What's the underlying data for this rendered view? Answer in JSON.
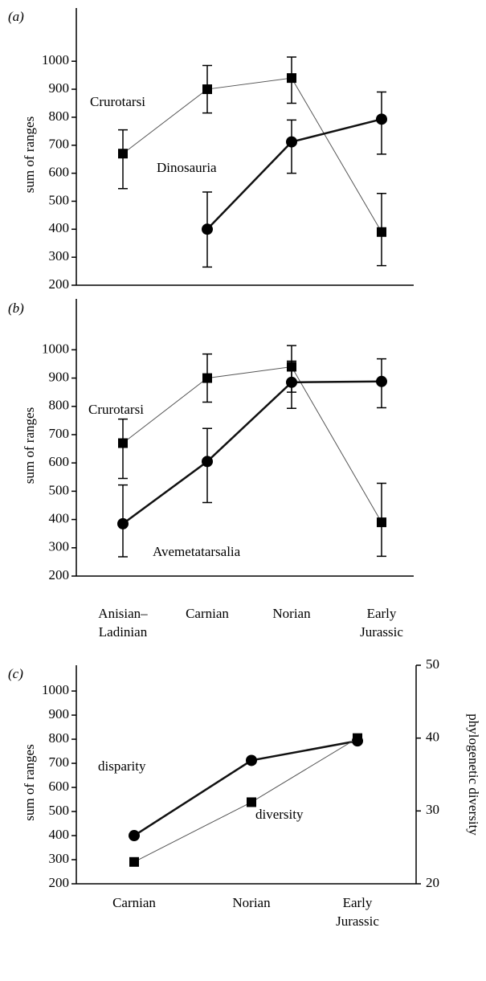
{
  "chart_data": [
    {
      "type": "line",
      "title": "(a)",
      "ylabel": "sum of ranges",
      "categories": [
        null,
        null,
        null,
        null
      ],
      "ylim": [
        200,
        1190
      ],
      "yticks": [
        200,
        300,
        400,
        500,
        600,
        700,
        800,
        900,
        1000
      ],
      "annotations": [
        "Crurotarsi",
        "Dinosauria"
      ],
      "series": [
        {
          "name": "Crurotarsi",
          "color": "#555555",
          "marker": "square",
          "line_width": 1,
          "values": [
            670,
            900,
            940,
            390
          ],
          "lower": [
            545,
            815,
            850,
            270
          ],
          "upper": [
            755,
            985,
            1015,
            528
          ]
        },
        {
          "name": "Dinosauria",
          "color": "#111111",
          "marker": "circle",
          "line_width": 2.5,
          "values": [
            null,
            400,
            712,
            793
          ],
          "lower": [
            null,
            265,
            600,
            668
          ],
          "upper": [
            null,
            533,
            790,
            890
          ]
        }
      ]
    },
    {
      "type": "line",
      "title": "(b)",
      "ylabel": "sum of ranges",
      "categories": [
        "Anisian–\nLadinian",
        "Carnian",
        "Norian",
        "Early\nJurassic"
      ],
      "ylim": [
        200,
        1180
      ],
      "yticks": [
        200,
        300,
        400,
        500,
        600,
        700,
        800,
        900,
        1000
      ],
      "annotations": [
        "Crurotarsi",
        "Avemetatarsalia"
      ],
      "series": [
        {
          "name": "Crurotarsi",
          "color": "#555555",
          "marker": "square",
          "line_width": 1,
          "values": [
            670,
            900,
            940,
            390
          ],
          "lower": [
            545,
            815,
            850,
            270
          ],
          "upper": [
            755,
            985,
            1015,
            528
          ]
        },
        {
          "name": "Avemetatarsalia",
          "color": "#111111",
          "marker": "circle",
          "line_width": 2.5,
          "values": [
            385,
            605,
            885,
            888
          ],
          "lower": [
            268,
            460,
            793,
            795
          ],
          "upper": [
            522,
            722,
            960,
            968
          ]
        }
      ]
    },
    {
      "type": "line",
      "title": "(c)",
      "ylabel": "sum of ranges",
      "y2label": "phylogenetic diversity",
      "categories": [
        "Carnian",
        "Norian",
        "Early\nJurassic"
      ],
      "ylim": [
        200,
        1107
      ],
      "yticks": [
        200,
        300,
        400,
        500,
        600,
        700,
        800,
        900,
        1000
      ],
      "y2lim": [
        20,
        50
      ],
      "y2ticks": [
        20,
        30,
        40,
        50
      ],
      "annotations": [
        "disparity",
        "diversity"
      ],
      "series": [
        {
          "name": "disparity",
          "color": "#111111",
          "marker": "circle",
          "line_width": 2.5,
          "values": [
            400,
            712,
            793
          ]
        },
        {
          "name": "diversity",
          "color": "#555555",
          "marker": "square",
          "line_width": 1,
          "axis": "y2",
          "values": [
            23,
            31.2,
            40
          ]
        }
      ]
    }
  ]
}
